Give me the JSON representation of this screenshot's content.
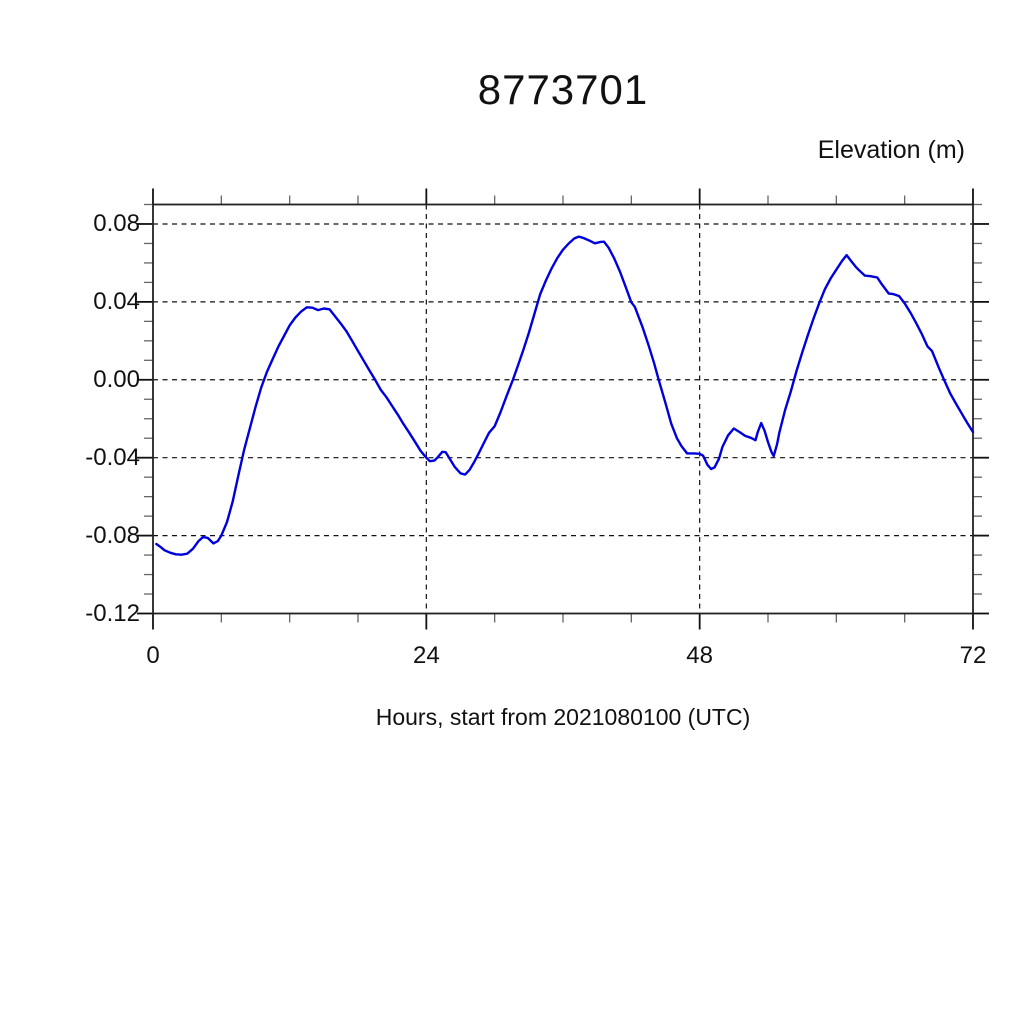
{
  "page": {
    "background": "#ffffff"
  },
  "chart_data": {
    "type": "line",
    "title": "8773701",
    "ylabel": "Elevation (m)",
    "xlabel": "Hours, start from 2021080100 (UTC)",
    "x_range": [
      0,
      72
    ],
    "y_range": [
      -0.12,
      0.09
    ],
    "x_major_ticks": [
      0,
      24,
      48,
      72
    ],
    "x_tick_labels": [
      "0",
      "24",
      "48",
      "72"
    ],
    "x_minor_step": 6,
    "y_major_ticks": [
      0.08,
      0.04,
      0.0,
      -0.04,
      -0.08,
      -0.12
    ],
    "y_tick_labels": [
      "0.08",
      "0.04",
      "0.00",
      "-0.04",
      "-0.08",
      "-0.12"
    ],
    "y_minor_step": 0.01,
    "grid": {
      "x_lines": [
        24,
        48
      ],
      "y_lines": [
        0.08,
        0.04,
        0.0,
        -0.04,
        -0.08
      ],
      "style": "dashed"
    },
    "legend": null,
    "colors": {
      "line": "#0000dd",
      "frame": "#222222",
      "grid": "#111111",
      "major_tick": "#111111",
      "minor_tick": "#666666"
    },
    "series": [
      {
        "name": "elevation",
        "points": [
          [
            0.3,
            -0.0843
          ],
          [
            0.7,
            -0.086
          ],
          [
            1.0,
            -0.0875
          ],
          [
            1.5,
            -0.0888
          ],
          [
            2.0,
            -0.0896
          ],
          [
            2.5,
            -0.0898
          ],
          [
            3.0,
            -0.0893
          ],
          [
            3.5,
            -0.0868
          ],
          [
            4.0,
            -0.0828
          ],
          [
            4.4,
            -0.0807
          ],
          [
            4.8,
            -0.0812
          ],
          [
            5.3,
            -0.084
          ],
          [
            5.7,
            -0.0828
          ],
          [
            6.0,
            -0.08
          ],
          [
            6.5,
            -0.073
          ],
          [
            7.0,
            -0.0625
          ],
          [
            7.5,
            -0.049
          ],
          [
            8.0,
            -0.036
          ],
          [
            8.5,
            -0.025
          ],
          [
            9.0,
            -0.014
          ],
          [
            9.5,
            -0.004
          ],
          [
            10.0,
            0.004
          ],
          [
            10.5,
            0.0105
          ],
          [
            11.0,
            0.017
          ],
          [
            11.5,
            0.0225
          ],
          [
            12.0,
            0.028
          ],
          [
            12.5,
            0.032
          ],
          [
            13.0,
            0.035
          ],
          [
            13.5,
            0.0372
          ],
          [
            14.0,
            0.037
          ],
          [
            14.5,
            0.0358
          ],
          [
            15.0,
            0.0366
          ],
          [
            15.5,
            0.0362
          ],
          [
            16.0,
            0.0325
          ],
          [
            16.5,
            0.0288
          ],
          [
            17.0,
            0.0248
          ],
          [
            17.5,
            0.0198
          ],
          [
            18.0,
            0.0148
          ],
          [
            18.5,
            0.0098
          ],
          [
            19.0,
            0.0048
          ],
          [
            19.5,
            0.0
          ],
          [
            20.0,
            -0.0052
          ],
          [
            20.5,
            -0.009
          ],
          [
            21.0,
            -0.0135
          ],
          [
            21.5,
            -0.018
          ],
          [
            22.0,
            -0.0228
          ],
          [
            22.5,
            -0.0272
          ],
          [
            23.0,
            -0.0318
          ],
          [
            23.5,
            -0.0365
          ],
          [
            24.0,
            -0.04
          ],
          [
            24.3,
            -0.0418
          ],
          [
            24.7,
            -0.0415
          ],
          [
            25.0,
            -0.0398
          ],
          [
            25.4,
            -0.037
          ],
          [
            25.7,
            -0.0372
          ],
          [
            26.0,
            -0.04
          ],
          [
            26.5,
            -0.0448
          ],
          [
            27.0,
            -0.048
          ],
          [
            27.4,
            -0.0487
          ],
          [
            27.8,
            -0.0462
          ],
          [
            28.2,
            -0.0422
          ],
          [
            28.6,
            -0.0378
          ],
          [
            29.0,
            -0.033
          ],
          [
            29.5,
            -0.0272
          ],
          [
            30.0,
            -0.0238
          ],
          [
            30.5,
            -0.0168
          ],
          [
            31.0,
            -0.009
          ],
          [
            31.6,
            0.0
          ],
          [
            32.0,
            0.0065
          ],
          [
            32.5,
            0.015
          ],
          [
            33.0,
            0.024
          ],
          [
            33.5,
            0.034
          ],
          [
            34.0,
            0.044
          ],
          [
            34.5,
            0.051
          ],
          [
            35.0,
            0.0572
          ],
          [
            35.5,
            0.0625
          ],
          [
            36.0,
            0.0668
          ],
          [
            36.5,
            0.07
          ],
          [
            37.0,
            0.0726
          ],
          [
            37.4,
            0.0735
          ],
          [
            37.8,
            0.0728
          ],
          [
            38.3,
            0.0715
          ],
          [
            38.8,
            0.0701
          ],
          [
            39.3,
            0.0708
          ],
          [
            39.6,
            0.0709
          ],
          [
            40.0,
            0.0678
          ],
          [
            40.5,
            0.0622
          ],
          [
            41.0,
            0.0556
          ],
          [
            41.5,
            0.0478
          ],
          [
            42.0,
            0.0398
          ],
          [
            42.3,
            0.0375
          ],
          [
            43.0,
            0.0268
          ],
          [
            43.5,
            0.018
          ],
          [
            44.0,
            0.0085
          ],
          [
            44.4,
            0.0
          ],
          [
            45.0,
            -0.012
          ],
          [
            45.5,
            -0.0225
          ],
          [
            46.0,
            -0.03
          ],
          [
            46.4,
            -0.034
          ],
          [
            46.9,
            -0.0378
          ],
          [
            47.5,
            -0.0378
          ],
          [
            48.0,
            -0.038
          ],
          [
            48.3,
            -0.039
          ],
          [
            48.7,
            -0.0438
          ],
          [
            49.0,
            -0.0458
          ],
          [
            49.3,
            -0.045
          ],
          [
            49.7,
            -0.0405
          ],
          [
            50.0,
            -0.0345
          ],
          [
            50.5,
            -0.0285
          ],
          [
            51.0,
            -0.025
          ],
          [
            51.5,
            -0.0268
          ],
          [
            52.0,
            -0.0288
          ],
          [
            52.5,
            -0.0298
          ],
          [
            52.9,
            -0.031
          ],
          [
            53.1,
            -0.0268
          ],
          [
            53.4,
            -0.0222
          ],
          [
            53.7,
            -0.0262
          ],
          [
            54.0,
            -0.032
          ],
          [
            54.3,
            -0.037
          ],
          [
            54.5,
            -0.0392
          ],
          [
            54.8,
            -0.033
          ],
          [
            55.0,
            -0.027
          ],
          [
            55.5,
            -0.0155
          ],
          [
            56.0,
            -0.006
          ],
          [
            56.5,
            0.0045
          ],
          [
            57.0,
            0.014
          ],
          [
            57.5,
            0.023
          ],
          [
            58.0,
            0.0315
          ],
          [
            58.5,
            0.0395
          ],
          [
            59.0,
            0.0465
          ],
          [
            59.5,
            0.052
          ],
          [
            60.0,
            0.0565
          ],
          [
            60.5,
            0.061
          ],
          [
            60.9,
            0.064
          ],
          [
            61.3,
            0.061
          ],
          [
            61.7,
            0.058
          ],
          [
            62.0,
            0.0562
          ],
          [
            62.5,
            0.0535
          ],
          [
            63.0,
            0.0532
          ],
          [
            63.6,
            0.0525
          ],
          [
            64.0,
            0.049
          ],
          [
            64.6,
            0.0443
          ],
          [
            65.0,
            0.044
          ],
          [
            65.5,
            0.043
          ],
          [
            66.0,
            0.0392
          ],
          [
            66.5,
            0.0345
          ],
          [
            67.0,
            0.0292
          ],
          [
            67.5,
            0.0235
          ],
          [
            68.0,
            0.0172
          ],
          [
            68.4,
            0.0148
          ],
          [
            69.0,
            0.0062
          ],
          [
            69.5,
            -0.0005
          ],
          [
            70.0,
            -0.007
          ],
          [
            70.5,
            -0.0122
          ],
          [
            71.0,
            -0.0172
          ],
          [
            71.5,
            -0.0222
          ],
          [
            72.0,
            -0.0268
          ]
        ]
      }
    ]
  }
}
